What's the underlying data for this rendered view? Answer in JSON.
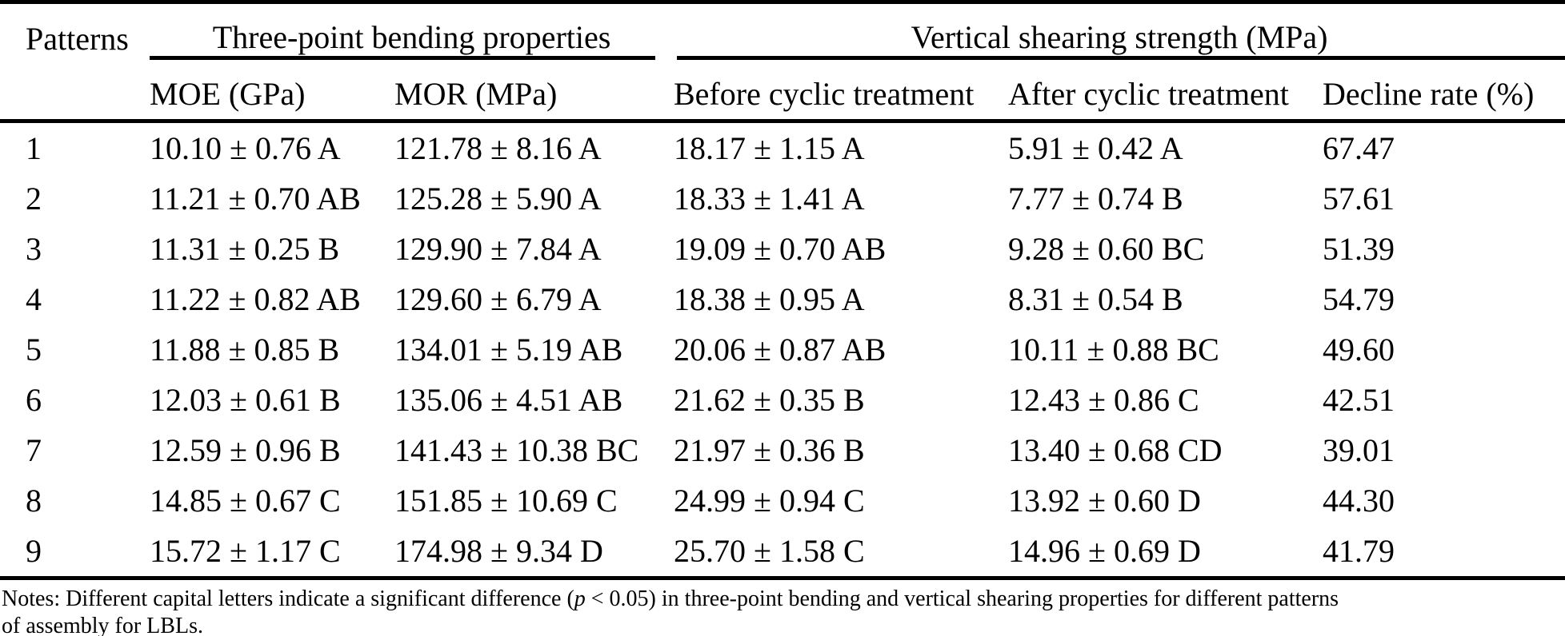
{
  "table": {
    "header": {
      "patterns": "Patterns",
      "group_bending": "Three-point bending properties",
      "group_shearing": "Vertical shearing strength (MPa)",
      "sub": {
        "moe": "MOE (GPa)",
        "mor": "MOR (MPa)",
        "before": "Before cyclic treatment",
        "after": "After cyclic treatment",
        "decline": "Decline rate (%)"
      }
    },
    "rows": [
      {
        "pattern": "1",
        "moe": "10.10 ± 0.76 A",
        "mor": "121.78 ± 8.16 A",
        "before": "18.17 ± 1.15 A",
        "after": "5.91 ± 0.42 A",
        "decline": "67.47"
      },
      {
        "pattern": "2",
        "moe": "11.21 ± 0.70 AB",
        "mor": "125.28 ± 5.90 A",
        "before": "18.33 ± 1.41 A",
        "after": "7.77 ± 0.74 B",
        "decline": "57.61"
      },
      {
        "pattern": "3",
        "moe": "11.31 ± 0.25 B",
        "mor": "129.90 ± 7.84 A",
        "before": "19.09 ± 0.70 AB",
        "after": "9.28 ± 0.60 BC",
        "decline": "51.39"
      },
      {
        "pattern": "4",
        "moe": "11.22 ± 0.82 AB",
        "mor": "129.60 ± 6.79 A",
        "before": "18.38 ± 0.95 A",
        "after": "8.31 ± 0.54 B",
        "decline": "54.79"
      },
      {
        "pattern": "5",
        "moe": "11.88 ± 0.85 B",
        "mor": "134.01 ± 5.19 AB",
        "before": "20.06 ± 0.87 AB",
        "after": "10.11 ± 0.88 BC",
        "decline": "49.60"
      },
      {
        "pattern": "6",
        "moe": "12.03 ± 0.61 B",
        "mor": "135.06 ± 4.51 AB",
        "before": "21.62 ± 0.35 B",
        "after": "12.43 ± 0.86 C",
        "decline": "42.51"
      },
      {
        "pattern": "7",
        "moe": "12.59 ± 0.96 B",
        "mor": "141.43 ± 10.38 BC",
        "before": "21.97 ± 0.36 B",
        "after": "13.40 ± 0.68 CD",
        "decline": "39.01"
      },
      {
        "pattern": "8",
        "moe": "14.85 ± 0.67 C",
        "mor": "151.85 ± 10.69 C",
        "before": "24.99 ± 0.94 C",
        "after": "13.92 ± 0.60 D",
        "decline": "44.30"
      },
      {
        "pattern": "9",
        "moe": "15.72 ± 1.17 C",
        "mor": "174.98 ± 9.34 D",
        "before": "25.70 ± 1.58 C",
        "after": "14.96 ± 0.69 D",
        "decline": "41.79"
      }
    ]
  },
  "notes": {
    "line1_before_p": "Notes: Different capital letters indicate a significant difference (",
    "p": "p",
    "line1_after_p": " < 0.05) in three-point bending and vertical shearing properties for different patterns",
    "line2": "of assembly for LBLs."
  }
}
